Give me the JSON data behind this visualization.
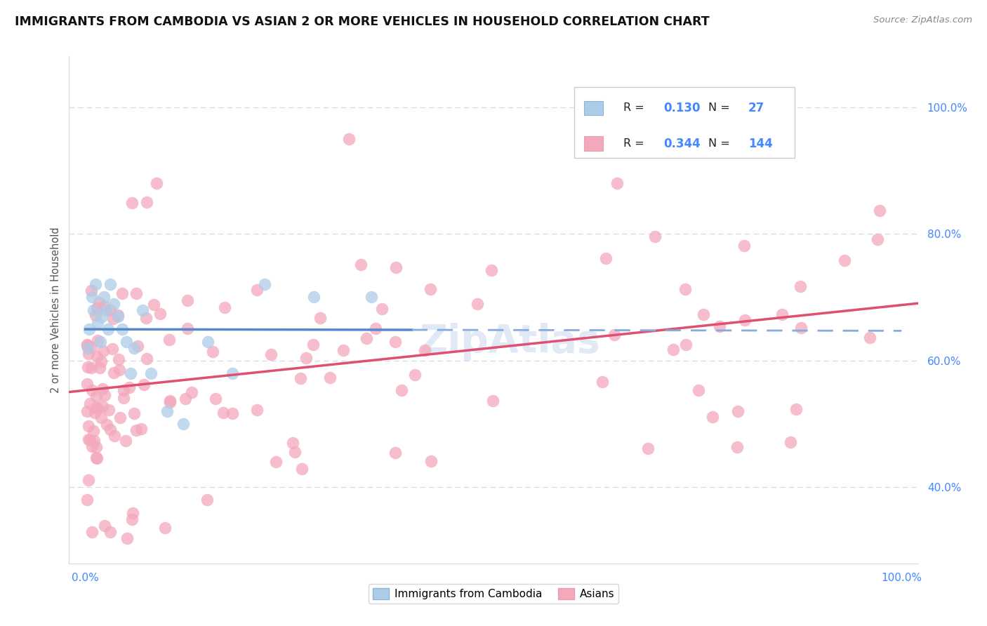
{
  "title": "IMMIGRANTS FROM CAMBODIA VS ASIAN 2 OR MORE VEHICLES IN HOUSEHOLD CORRELATION CHART",
  "source": "Source: ZipAtlas.com",
  "ylabel": "2 or more Vehicles in Household",
  "r_cambodia": "0.130",
  "n_cambodia": "27",
  "r_asian": "0.344",
  "n_asian": "144",
  "legend_label_cambodia": "Immigrants from Cambodia",
  "legend_label_asian": "Asians",
  "color_cambodia": "#aecce8",
  "color_asian": "#f4a8bb",
  "trendline_cambodia_solid": "#5588cc",
  "trendline_cambodia_dashed": "#88aadd",
  "trendline_asian": "#e05070",
  "grid_color": "#d8d8e8",
  "background_color": "#ffffff",
  "title_color": "#111111",
  "source_color": "#888888",
  "axis_label_color": "#4488ff",
  "ylabel_color": "#555555",
  "legend_text_color": "#222222",
  "legend_value_color": "#4488ff",
  "watermark_color": "#c8d8ee",
  "xlim": [
    -2,
    102
  ],
  "ylim": [
    28,
    108
  ],
  "yticks": [
    40,
    60,
    80,
    100
  ],
  "xticks": [
    0,
    100
  ]
}
